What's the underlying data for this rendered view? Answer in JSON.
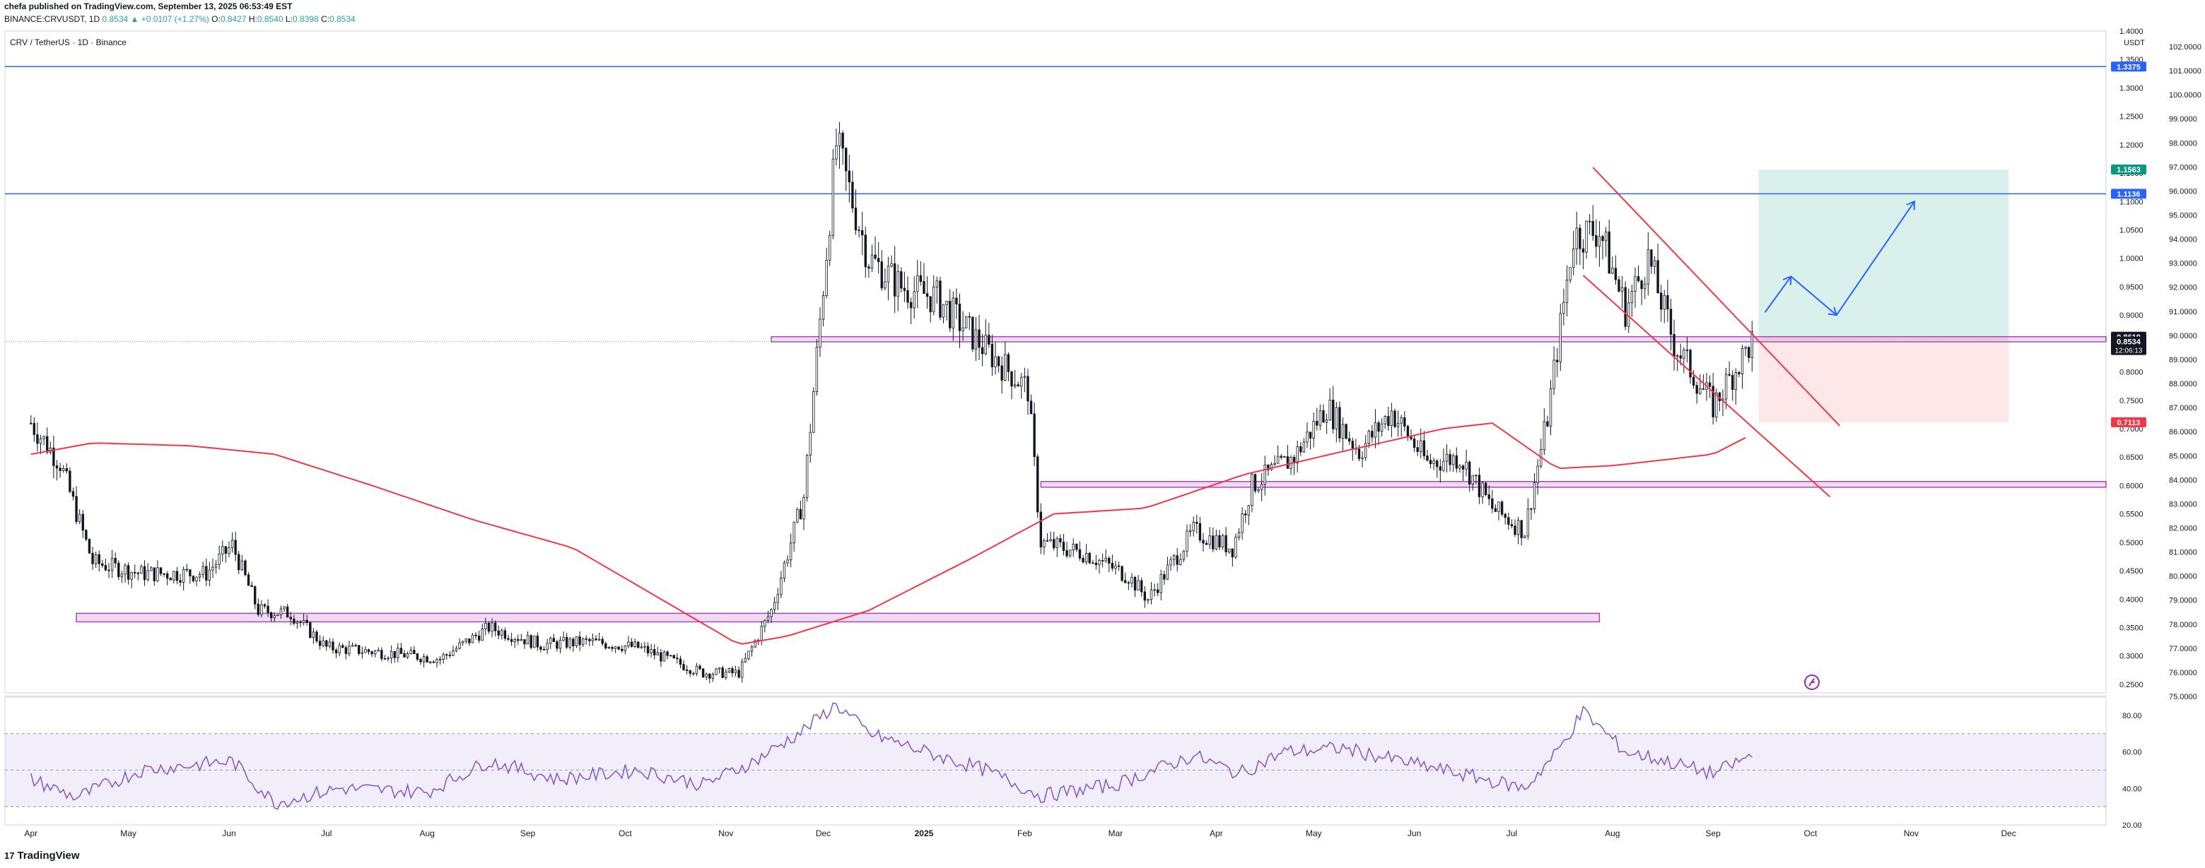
{
  "header": {
    "publisher": "chefa published on TradingView.com, September 13, 2025 06:53:49 EST",
    "symbol": "BINANCE:CRVUSDT, 1D",
    "change": "0.8534 ▲ +0.0107 (+1.27%)",
    "o_label": "O:",
    "o_value": "0.8427",
    "h_label": "H:",
    "h_value": "0.8540",
    "l_label": "L:",
    "l_value": "0.8398",
    "c_label": "C:",
    "c_value": "0.8534"
  },
  "chart_title": "CRV / TetherUS · 1D · Binance",
  "footer": {
    "brand": "TradingView",
    "logo_icon": "tradingview-logo-icon"
  },
  "chart_data": {
    "type": "candlestick",
    "price_axis": {
      "currency": "USDT",
      "ticks": [
        "1.4000",
        "1.3500",
        "1.3000",
        "1.2500",
        "1.2000",
        "1.1500",
        "1.1000",
        "1.0500",
        "1.0000",
        "0.9500",
        "0.9000",
        "0.8500",
        "0.8000",
        "0.7500",
        "0.7000",
        "0.6500",
        "0.6000",
        "0.5500",
        "0.5000",
        "0.4500",
        "0.4000",
        "0.3500",
        "0.3000",
        "0.2500"
      ],
      "tick_values": [
        1.4,
        1.35,
        1.3,
        1.25,
        1.2,
        1.15,
        1.1,
        1.05,
        1.0,
        0.95,
        0.9,
        0.85,
        0.8,
        0.75,
        0.7,
        0.65,
        0.6,
        0.55,
        0.5,
        0.45,
        0.4,
        0.35,
        0.3,
        0.25
      ],
      "right_ticks": [
        "102.0000",
        "101.0000",
        "100.0000",
        "99.0000",
        "98.0000",
        "97.0000",
        "96.0000",
        "95.0000",
        "94.0000",
        "93.0000",
        "92.0000",
        "91.0000",
        "90.0000",
        "89.0000",
        "88.0000",
        "87.0000",
        "86.0000",
        "85.0000",
        "84.0000",
        "83.0000",
        "82.0000",
        "81.0000",
        "80.0000",
        "79.0000",
        "78.0000",
        "77.0000",
        "76.0000",
        "75.0000"
      ],
      "range": [
        0.235,
        1.4
      ]
    },
    "x_axis": {
      "labels": [
        "Apr",
        "May",
        "Jun",
        "Jul",
        "Aug",
        "Sep",
        "Oct",
        "Nov",
        "Dec",
        "2025",
        "Feb",
        "Mar",
        "Apr",
        "May",
        "Jun",
        "Jul",
        "Aug",
        "Sep",
        "Oct",
        "Nov",
        "Dec"
      ],
      "bold": [
        "2025"
      ]
    },
    "price_labels": [
      {
        "text": "1.3375",
        "value": 1.3375,
        "color": "#2962ff"
      },
      {
        "text": "1.1563",
        "value": 1.1563,
        "color": "#089981"
      },
      {
        "text": "1.1136",
        "value": 1.1136,
        "color": "#2962ff"
      },
      {
        "text": "0.8619",
        "value": 0.8619,
        "color": "#131722"
      },
      {
        "text": "0.8534",
        "value": 0.8534,
        "color": "#131722",
        "sub": "12:06:13"
      },
      {
        "text": "0.7113",
        "value": 0.7113,
        "color": "#f23645"
      }
    ],
    "horizontal_lines": [
      1.3375,
      1.1136
    ],
    "current_price": 0.8534,
    "zones": [
      {
        "from_date": "2024-11-15",
        "to_date": "2025-12-31",
        "low": 0.853,
        "high": 0.862
      },
      {
        "from_date": "2025-02-06",
        "to_date": "2025-12-31",
        "low": 0.597,
        "high": 0.607
      },
      {
        "from_date": "2024-04-15",
        "to_date": "2025-07-28",
        "low": 0.36,
        "high": 0.375
      }
    ],
    "trendlines": [
      {
        "from": [
          "2025-07-26",
          1.16
        ],
        "to": [
          "2025-10-10",
          0.705
        ]
      },
      {
        "from": [
          "2025-07-23",
          0.97
        ],
        "to": [
          "2025-10-07",
          0.58
        ]
      }
    ],
    "targets": {
      "entry": 0.8619,
      "target": 1.1563,
      "stop": 0.7113,
      "from_date": "2025-09-15",
      "to_date": "2025-12-01"
    },
    "projection_path": [
      [
        "2025-09-17",
        0.905
      ],
      [
        "2025-09-25",
        0.968
      ],
      [
        "2025-10-09",
        0.9
      ],
      [
        "2025-11-02",
        1.1
      ]
    ],
    "candle_anchors": [
      [
        "2024-04-01",
        0.71
      ],
      [
        "2024-04-10",
        0.64
      ],
      [
        "2024-04-20",
        0.465
      ],
      [
        "2024-05-05",
        0.445
      ],
      [
        "2024-05-25",
        0.445
      ],
      [
        "2024-06-02",
        0.495
      ],
      [
        "2024-06-10",
        0.38
      ],
      [
        "2024-06-20",
        0.375
      ],
      [
        "2024-07-01",
        0.315
      ],
      [
        "2024-07-20",
        0.305
      ],
      [
        "2024-08-05",
        0.295
      ],
      [
        "2024-08-20",
        0.35
      ],
      [
        "2024-09-05",
        0.32
      ],
      [
        "2024-09-20",
        0.325
      ],
      [
        "2024-10-05",
        0.315
      ],
      [
        "2024-10-25",
        0.27
      ],
      [
        "2024-11-05",
        0.27
      ],
      [
        "2024-11-15",
        0.38
      ],
      [
        "2024-11-25",
        0.58
      ],
      [
        "2024-12-05",
        1.2
      ],
      [
        "2024-12-15",
        1.0
      ],
      [
        "2024-12-25",
        0.95
      ],
      [
        "2025-01-05",
        0.93
      ],
      [
        "2025-01-20",
        0.84
      ],
      [
        "2025-02-02",
        0.77
      ],
      [
        "2025-02-06",
        0.5
      ],
      [
        "2025-02-20",
        0.48
      ],
      [
        "2025-03-05",
        0.44
      ],
      [
        "2025-03-11",
        0.4
      ],
      [
        "2025-03-25",
        0.52
      ],
      [
        "2025-04-06",
        0.49
      ],
      [
        "2025-04-12",
        0.6
      ],
      [
        "2025-04-25",
        0.65
      ],
      [
        "2025-05-05",
        0.74
      ],
      [
        "2025-05-15",
        0.66
      ],
      [
        "2025-05-25",
        0.73
      ],
      [
        "2025-06-05",
        0.64
      ],
      [
        "2025-06-15",
        0.65
      ],
      [
        "2025-06-25",
        0.56
      ],
      [
        "2025-07-05",
        0.52
      ],
      [
        "2025-07-12",
        0.72
      ],
      [
        "2025-07-20",
        1.04
      ],
      [
        "2025-07-28",
        1.05
      ],
      [
        "2025-08-05",
        0.91
      ],
      [
        "2025-08-12",
        1.0
      ],
      [
        "2025-08-20",
        0.85
      ],
      [
        "2025-09-01",
        0.74
      ],
      [
        "2025-09-13",
        0.8534
      ]
    ],
    "moving_average": [
      [
        "2024-04-01",
        0.655
      ],
      [
        "2024-04-20",
        0.675
      ],
      [
        "2024-05-20",
        0.67
      ],
      [
        "2024-06-15",
        0.655
      ],
      [
        "2024-07-15",
        0.6
      ],
      [
        "2024-08-15",
        0.54
      ],
      [
        "2024-09-15",
        0.49
      ],
      [
        "2024-10-15",
        0.39
      ],
      [
        "2024-11-05",
        0.32
      ],
      [
        "2024-11-20",
        0.335
      ],
      [
        "2024-12-15",
        0.38
      ],
      [
        "2025-01-15",
        0.47
      ],
      [
        "2025-02-10",
        0.55
      ],
      [
        "2025-03-10",
        0.56
      ],
      [
        "2025-04-10",
        0.62
      ],
      [
        "2025-05-10",
        0.66
      ],
      [
        "2025-06-10",
        0.7
      ],
      [
        "2025-06-25",
        0.71
      ],
      [
        "2025-07-15",
        0.63
      ],
      [
        "2025-08-01",
        0.635
      ],
      [
        "2025-09-01",
        0.655
      ],
      [
        "2025-09-13",
        0.69
      ]
    ],
    "oscillator": {
      "ticks": [
        "80.00",
        "60.00",
        "40.00",
        "20.00"
      ],
      "tick_values": [
        80,
        60,
        40,
        20
      ],
      "bands": [
        70,
        50,
        30
      ],
      "range": [
        20,
        90
      ],
      "anchors": [
        [
          "2024-04-01",
          45
        ],
        [
          "2024-04-15",
          35
        ],
        [
          "2024-05-05",
          50
        ],
        [
          "2024-06-02",
          55
        ],
        [
          "2024-06-15",
          32
        ],
        [
          "2024-07-05",
          40
        ],
        [
          "2024-08-01",
          38
        ],
        [
          "2024-08-20",
          55
        ],
        [
          "2024-09-10",
          45
        ],
        [
          "2024-10-05",
          50
        ],
        [
          "2024-10-25",
          42
        ],
        [
          "2024-11-10",
          55
        ],
        [
          "2024-11-25",
          72
        ],
        [
          "2024-12-05",
          86
        ],
        [
          "2024-12-15",
          70
        ],
        [
          "2025-01-05",
          58
        ],
        [
          "2025-01-20",
          50
        ],
        [
          "2025-02-06",
          36
        ],
        [
          "2025-03-01",
          42
        ],
        [
          "2025-03-25",
          58
        ],
        [
          "2025-04-08",
          48
        ],
        [
          "2025-04-22",
          60
        ],
        [
          "2025-05-10",
          62
        ],
        [
          "2025-05-25",
          56
        ],
        [
          "2025-06-15",
          48
        ],
        [
          "2025-07-05",
          40
        ],
        [
          "2025-07-15",
          60
        ],
        [
          "2025-07-23",
          82
        ],
        [
          "2025-08-05",
          60
        ],
        [
          "2025-08-15",
          56
        ],
        [
          "2025-09-01",
          48
        ],
        [
          "2025-09-13",
          58
        ]
      ]
    }
  }
}
